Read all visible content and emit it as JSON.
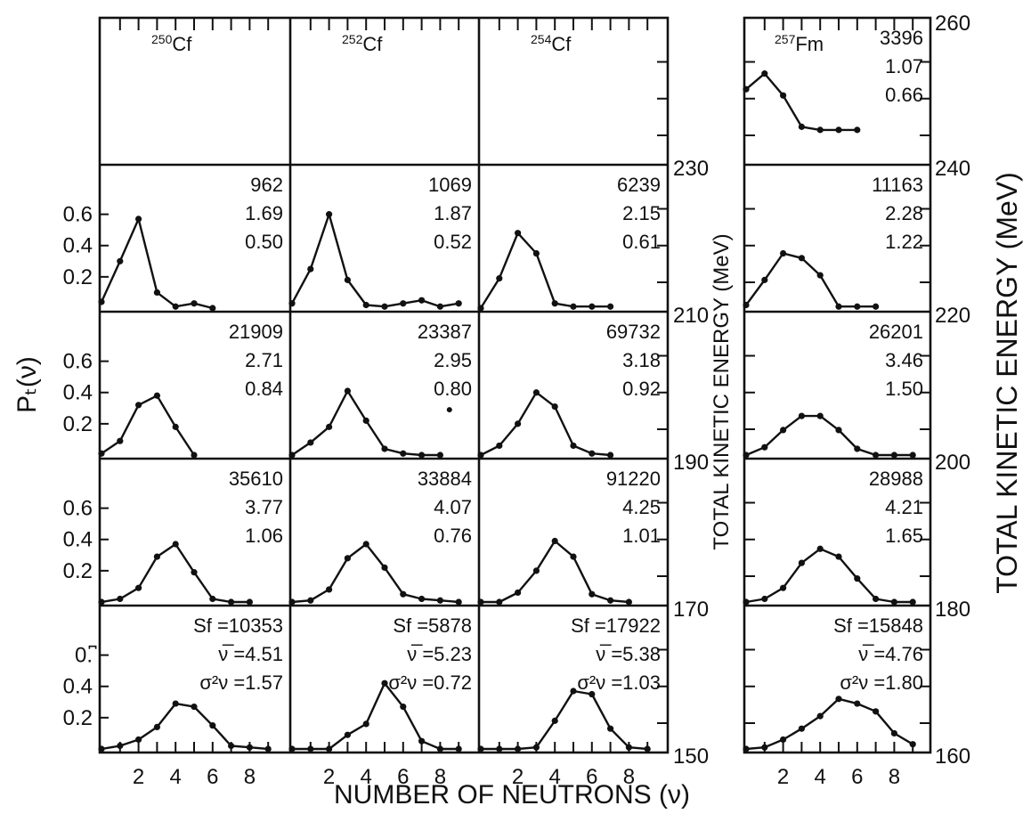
{
  "chart_data": {
    "type": "line",
    "xlabel": "NUMBER OF NEUTRONS (ν)",
    "ylabel": "Pₜ(ν)",
    "right_axis_label_inner": "TOTAL KINETIC ENERGY (MeV)",
    "right_axis_label_outer": "TOTAL KINETIC ENERGY (MeV)",
    "x_ticks": [
      "2",
      "4",
      "6",
      "8"
    ],
    "y_ticks": [
      "0.6",
      "0.4",
      "0.2"
    ],
    "bottom_row_y_ticks": [
      "0.͆",
      "0.4",
      "0.2"
    ],
    "tke_ticks_cf": [
      "230",
      "210",
      "190",
      "170",
      "150"
    ],
    "tke_ticks_fm": [
      "260",
      "240",
      "220",
      "200",
      "180",
      "160"
    ],
    "isotopes": [
      {
        "mass": "250",
        "symbol": "Cf"
      },
      {
        "mass": "252",
        "symbol": "Cf"
      },
      {
        "mass": "254",
        "symbol": "Cf"
      },
      {
        "mass": "257",
        "symbol": "Fm"
      }
    ],
    "panels": [
      {
        "row": 0,
        "col": 3,
        "info": [
          "3396",
          "1.07",
          "0.66"
        ],
        "x": [
          0,
          1,
          2,
          3,
          4,
          5,
          6
        ],
        "y": [
          0.46,
          0.56,
          0.42,
          0.22,
          0.2,
          0.2,
          0.2
        ]
      },
      {
        "row": 1,
        "col": 0,
        "info": [
          "962",
          "1.69",
          "0.50"
        ],
        "x": [
          0,
          1,
          2,
          3,
          4,
          5,
          6
        ],
        "y": [
          0.04,
          0.3,
          0.57,
          0.1,
          0.01,
          0.03,
          0.0
        ]
      },
      {
        "row": 1,
        "col": 1,
        "info": [
          "1069",
          "1.87",
          "0.52"
        ],
        "x": [
          0,
          1,
          2,
          3,
          4,
          5,
          6,
          7,
          8,
          9
        ],
        "y": [
          0.03,
          0.25,
          0.6,
          0.18,
          0.02,
          0.01,
          0.03,
          0.05,
          0.01,
          0.03
        ]
      },
      {
        "row": 1,
        "col": 2,
        "info": [
          "6239",
          "2.15",
          "0.61"
        ],
        "x": [
          0,
          1,
          2,
          3,
          4,
          5,
          6,
          7
        ],
        "y": [
          0.0,
          0.19,
          0.48,
          0.35,
          0.03,
          0.01,
          0.01,
          0.01
        ]
      },
      {
        "row": 1,
        "col": 3,
        "info": [
          "11163",
          "2.28",
          "1.22"
        ],
        "x": [
          0,
          1,
          2,
          3,
          4,
          5,
          6,
          7
        ],
        "y": [
          0.02,
          0.18,
          0.35,
          0.32,
          0.21,
          0.01,
          0.01,
          0.01
        ]
      },
      {
        "row": 2,
        "col": 0,
        "info": [
          "21909",
          "2.71",
          "0.84"
        ],
        "x": [
          0,
          1,
          2,
          3,
          4,
          5
        ],
        "y": [
          0.01,
          0.09,
          0.32,
          0.38,
          0.18,
          0.0
        ]
      },
      {
        "row": 2,
        "col": 1,
        "info": [
          "23387",
          "2.95",
          "0.80"
        ],
        "x": [
          0,
          1,
          2,
          3,
          4,
          5,
          6,
          7,
          8
        ],
        "y": [
          0.0,
          0.08,
          0.18,
          0.41,
          0.22,
          0.04,
          0.01,
          0.0,
          0.0
        ]
      },
      {
        "row": 2,
        "col": 2,
        "info": [
          "69732",
          "3.18",
          "0.92"
        ],
        "x": [
          0,
          1,
          2,
          3,
          4,
          5,
          6,
          7
        ],
        "y": [
          0.0,
          0.06,
          0.2,
          0.4,
          0.31,
          0.06,
          0.01,
          0.0
        ]
      },
      {
        "row": 2,
        "col": 3,
        "info": [
          "26201",
          "3.46",
          "1.50"
        ],
        "x": [
          0,
          1,
          2,
          3,
          4,
          5,
          6,
          7,
          8,
          9
        ],
        "y": [
          0.0,
          0.05,
          0.16,
          0.25,
          0.25,
          0.16,
          0.04,
          0.0,
          0.0,
          0.0
        ]
      },
      {
        "row": 3,
        "col": 0,
        "info": [
          "35610",
          "3.77",
          "1.06"
        ],
        "x": [
          0,
          1,
          2,
          3,
          4,
          5,
          6,
          7,
          8
        ],
        "y": [
          0.0,
          0.02,
          0.09,
          0.29,
          0.37,
          0.19,
          0.02,
          0.0,
          0.0
        ]
      },
      {
        "row": 3,
        "col": 1,
        "info": [
          "33884",
          "4.07",
          "0.76"
        ],
        "x": [
          0,
          1,
          2,
          3,
          4,
          5,
          6,
          7,
          8,
          9
        ],
        "y": [
          0.0,
          0.01,
          0.08,
          0.28,
          0.37,
          0.22,
          0.05,
          0.02,
          0.01,
          0.0
        ]
      },
      {
        "row": 3,
        "col": 2,
        "info": [
          "91220",
          "4.25",
          "1.01"
        ],
        "x": [
          0,
          1,
          2,
          3,
          4,
          5,
          6,
          7,
          8
        ],
        "y": [
          0.0,
          0.0,
          0.06,
          0.2,
          0.39,
          0.29,
          0.05,
          0.01,
          0.0
        ]
      },
      {
        "row": 3,
        "col": 3,
        "info": [
          "28988",
          "4.21",
          "1.65"
        ],
        "x": [
          0,
          1,
          2,
          3,
          4,
          5,
          6,
          7,
          8,
          9
        ],
        "y": [
          0.0,
          0.02,
          0.09,
          0.25,
          0.34,
          0.29,
          0.15,
          0.02,
          0.0,
          0.0
        ]
      },
      {
        "row": 4,
        "col": 0,
        "info": [
          "Sf =10353",
          "ν̅ =4.51",
          "σ²ν =1.57"
        ],
        "x": [
          0,
          1,
          2,
          3,
          4,
          5,
          6,
          7,
          8,
          9
        ],
        "y": [
          0.0,
          0.02,
          0.06,
          0.14,
          0.29,
          0.27,
          0.15,
          0.02,
          0.01,
          0.0
        ]
      },
      {
        "row": 4,
        "col": 1,
        "info": [
          "Sf =5878",
          "ν̅ =5.23",
          "σ²ν =0.72"
        ],
        "x": [
          0,
          1,
          2,
          3,
          4,
          5,
          6,
          7,
          8,
          9
        ],
        "y": [
          0.0,
          0.0,
          0.0,
          0.09,
          0.16,
          0.42,
          0.27,
          0.05,
          0.0,
          0.0
        ]
      },
      {
        "row": 4,
        "col": 2,
        "info": [
          "Sf =17922",
          "ν̅ =5.38",
          "σ²ν =1.03"
        ],
        "x": [
          0,
          1,
          2,
          3,
          4,
          5,
          6,
          7,
          8,
          9
        ],
        "y": [
          0.0,
          0.0,
          0.0,
          0.01,
          0.18,
          0.37,
          0.35,
          0.13,
          0.01,
          0.0
        ]
      },
      {
        "row": 4,
        "col": 3,
        "info": [
          "Sf =15848",
          "ν̅ =4.76",
          "σ²ν =1.80"
        ],
        "x": [
          0,
          1,
          2,
          3,
          4,
          5,
          6,
          7,
          8,
          9
        ],
        "y": [
          0.0,
          0.01,
          0.06,
          0.13,
          0.21,
          0.32,
          0.29,
          0.24,
          0.1,
          0.03
        ]
      }
    ],
    "stray_points": [
      {
        "row": 2,
        "col": 1,
        "x": 8.5,
        "y": 0.29
      }
    ]
  }
}
